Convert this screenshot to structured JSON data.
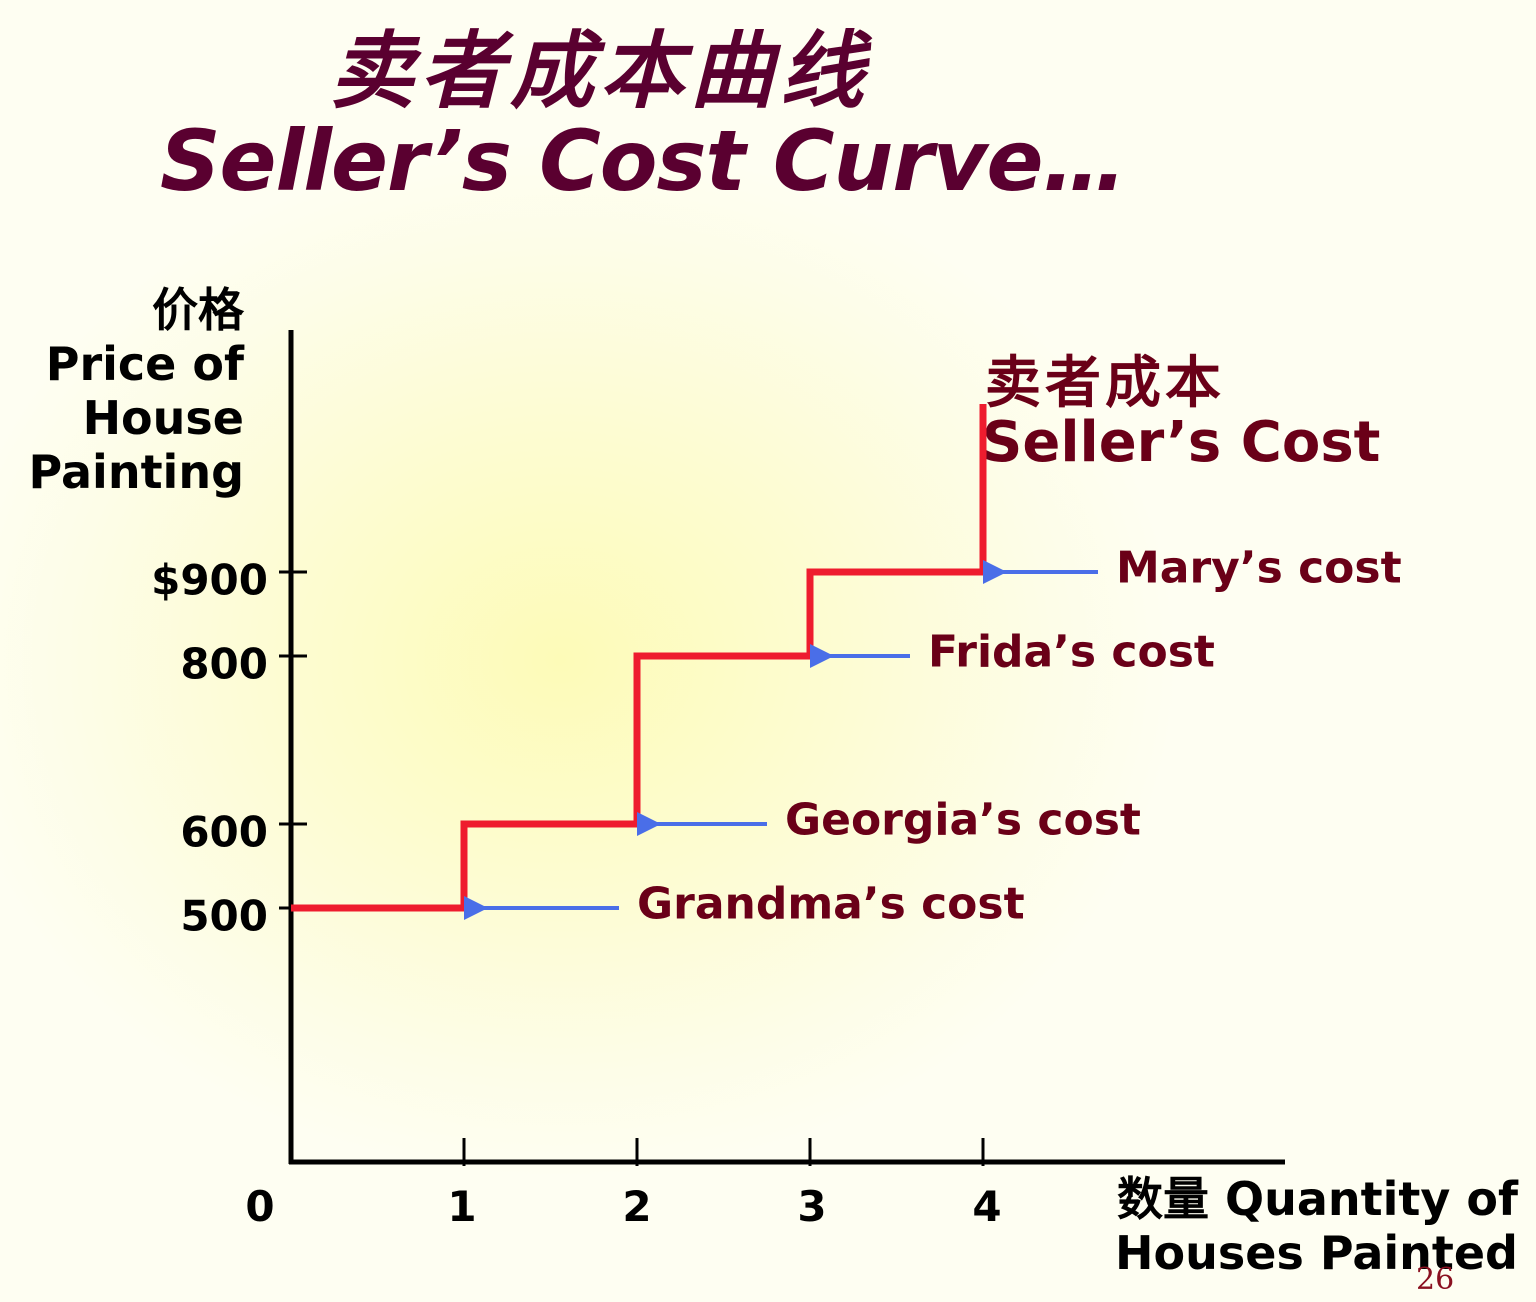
{
  "title_cn": "卖者成本曲线",
  "title_en": "Seller’s Cost Curve…",
  "page_number": "26",
  "chart_data": {
    "type": "line",
    "step": true,
    "ylabel_lines": [
      "价格",
      "Price of",
      "House",
      "Painting"
    ],
    "xlabel_lines": [
      "数量 Quantity of",
      "Houses Painted"
    ],
    "y_ticks": [
      {
        "value": 900,
        "label": "$900"
      },
      {
        "value": 800,
        "label": "800"
      },
      {
        "value": 600,
        "label": "600"
      },
      {
        "value": 500,
        "label": "500"
      }
    ],
    "x_ticks": [
      {
        "value": 0,
        "label": "0"
      },
      {
        "value": 1,
        "label": "1"
      },
      {
        "value": 2,
        "label": "2"
      },
      {
        "value": 3,
        "label": "3"
      },
      {
        "value": 4,
        "label": "4"
      }
    ],
    "xlim": [
      0,
      5.7
    ],
    "ylim": [
      0,
      1200
    ],
    "series": [
      {
        "name_cn": "卖者成本",
        "name": "Seller’s Cost",
        "color": "#ee1c2e",
        "points": [
          [
            0,
            500
          ],
          [
            1,
            500
          ],
          [
            1,
            600
          ],
          [
            2,
            600
          ],
          [
            2,
            800
          ],
          [
            3,
            800
          ],
          [
            3,
            900
          ],
          [
            4,
            900
          ],
          [
            4,
            1100
          ]
        ]
      }
    ],
    "annotations": [
      {
        "text": "Grandma’s cost",
        "x": 1,
        "y": 500
      },
      {
        "text": "Georgia’s cost",
        "x": 2,
        "y": 600
      },
      {
        "text": "Frida’s cost",
        "x": 3,
        "y": 800
      },
      {
        "text": "Mary’s cost",
        "x": 4,
        "y": 900
      }
    ],
    "arrow_color": "#4a6ee8",
    "axis_color": "#000000"
  }
}
